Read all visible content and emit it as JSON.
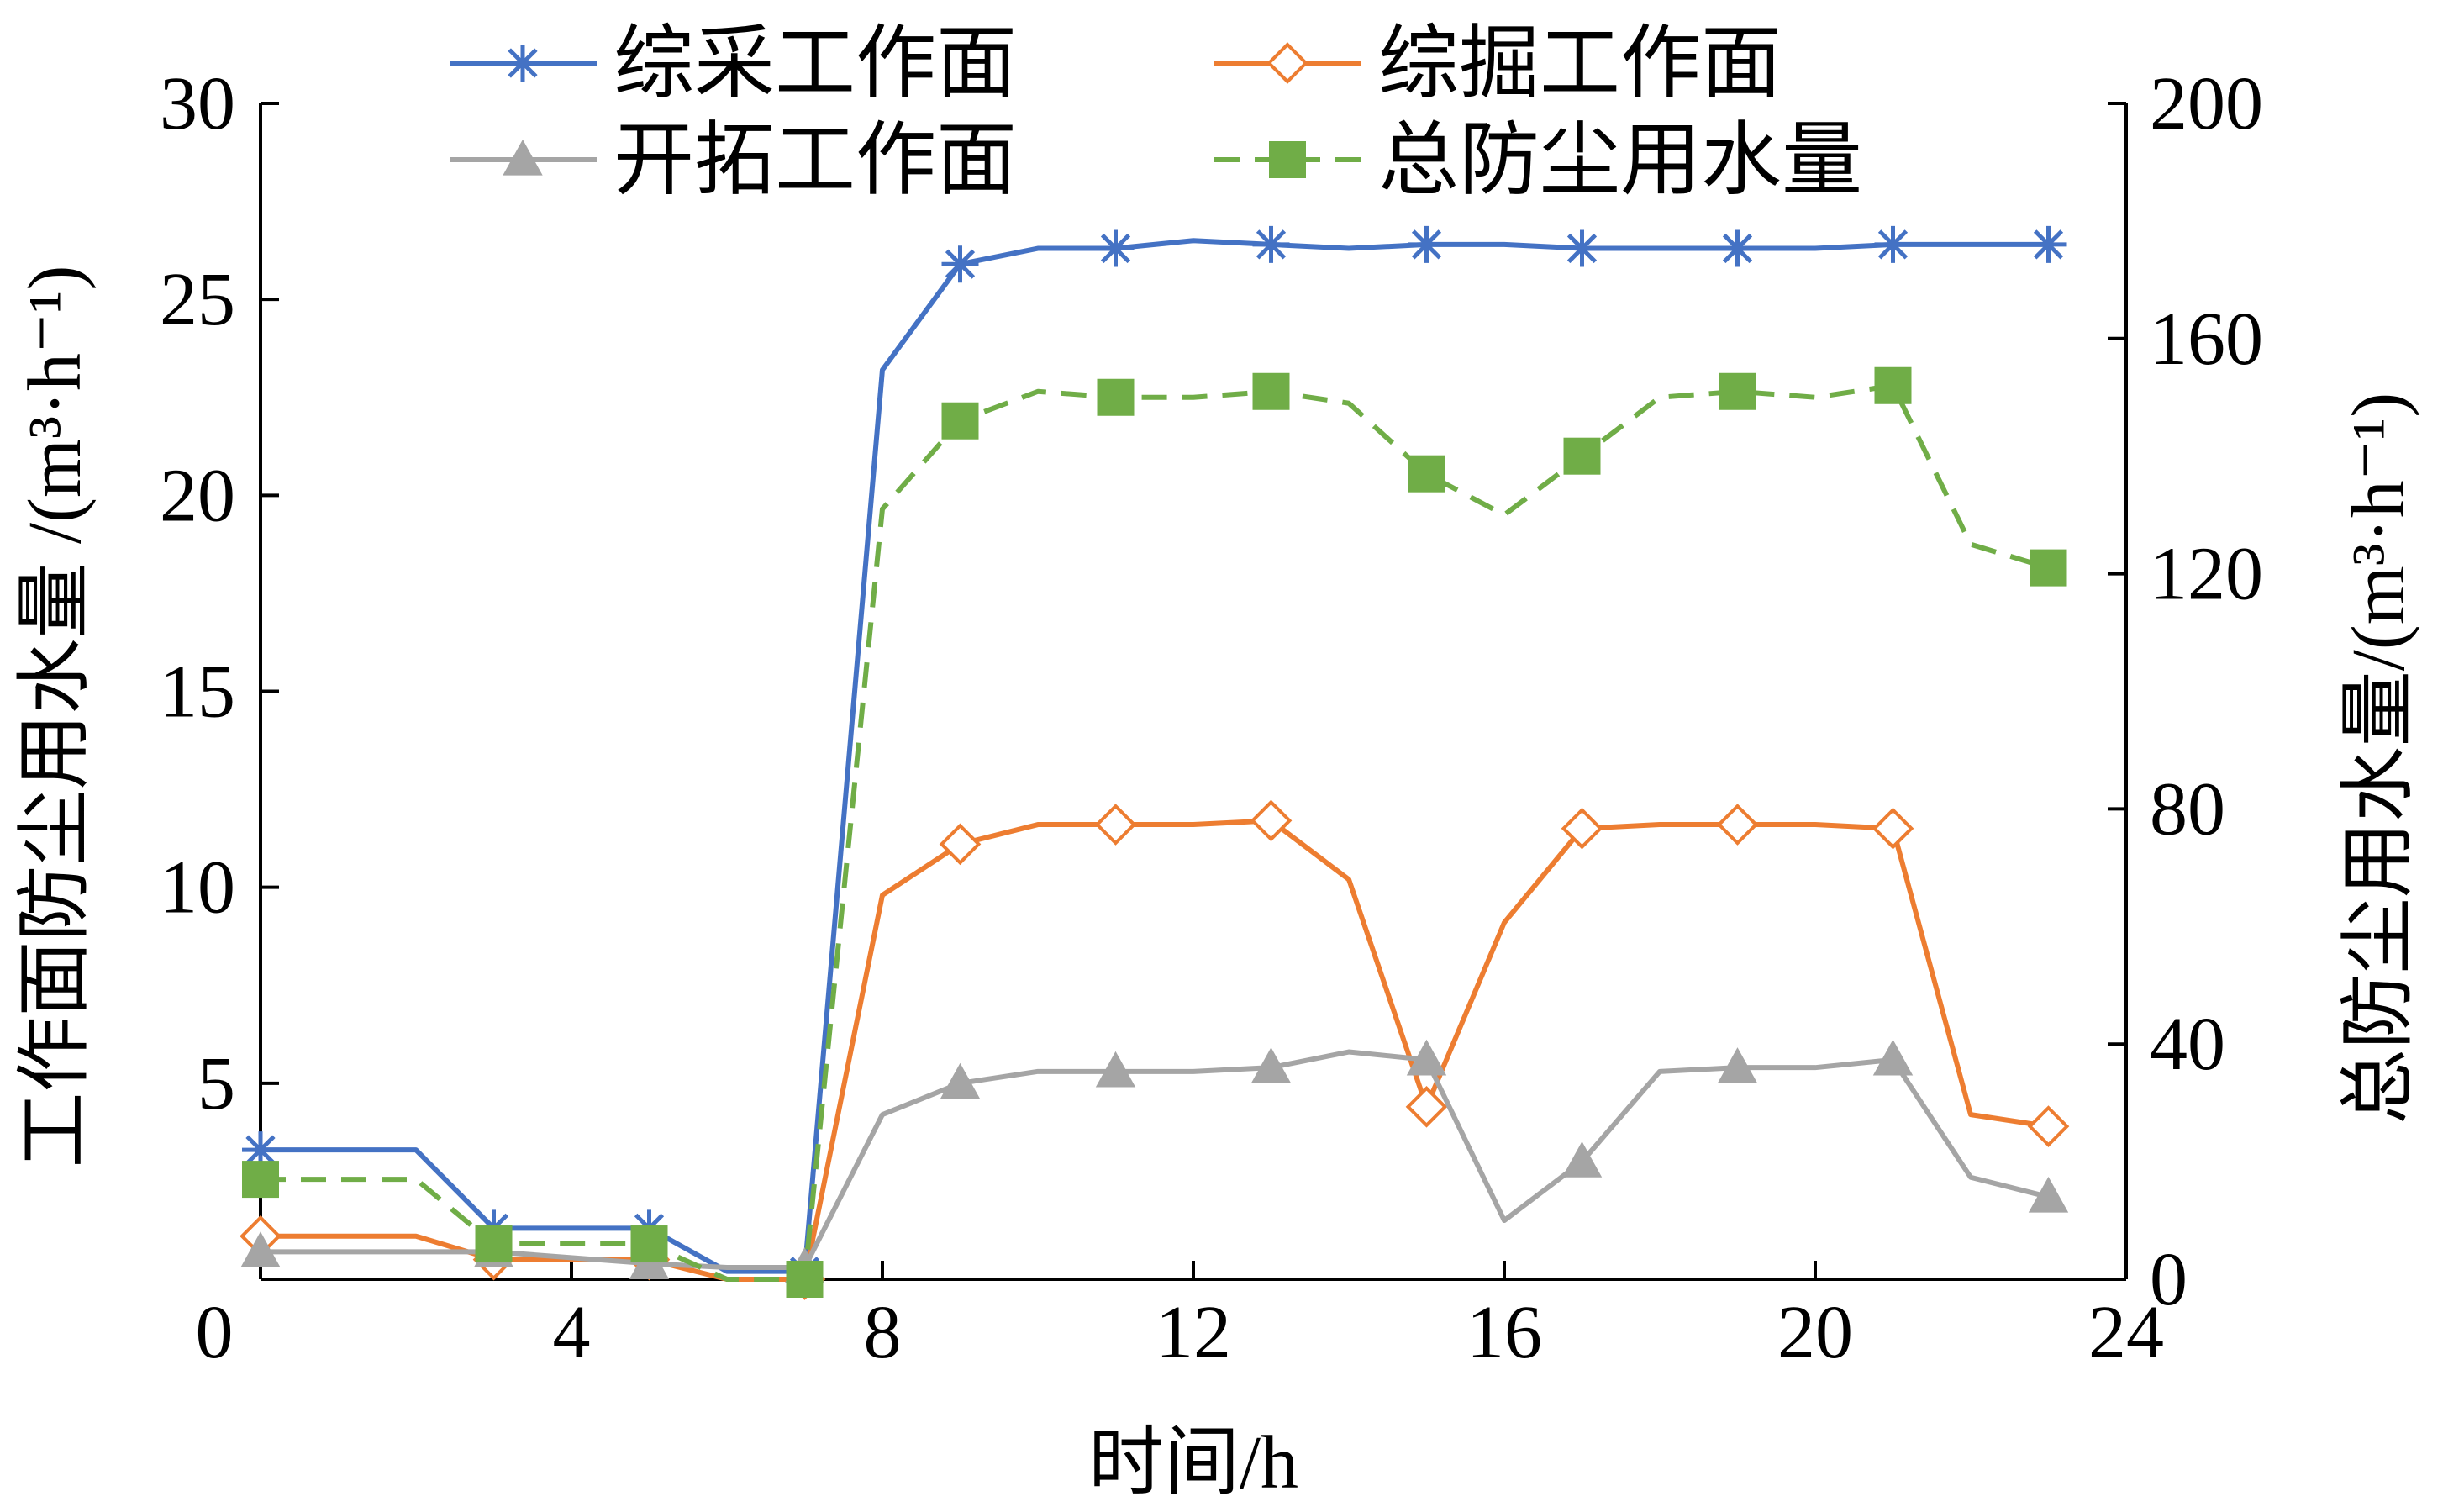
{
  "chart_data": {
    "type": "line",
    "xlabel": "时间/h",
    "ylabel_left": "工作面防尘用水量 /(m³·h⁻¹)",
    "ylabel_right": "总防尘用水量/(m³·h⁻¹)",
    "xlim": [
      0,
      24
    ],
    "ylim_left": [
      0,
      30
    ],
    "ylim_right": [
      0,
      200
    ],
    "xticks": [
      "0",
      "4",
      "8",
      "12",
      "16",
      "20",
      "24"
    ],
    "yticks_left": [
      "5",
      "10",
      "15",
      "20",
      "25",
      "30"
    ],
    "yticks_right": [
      "0",
      "40",
      "80",
      "120",
      "160",
      "200"
    ],
    "grid": false,
    "legend_position": "top",
    "series": [
      {
        "name": "综采工作面",
        "axis": "left",
        "color": "#4472C4",
        "line_style": "solid",
        "marker": "asterisk",
        "x": [
          0,
          2,
          3,
          5,
          6,
          7,
          8,
          9,
          10,
          11,
          12,
          13,
          14,
          15,
          16,
          17,
          18,
          19,
          20,
          21,
          22,
          23
        ],
        "y": [
          3.3,
          3.3,
          1.3,
          1.3,
          0.2,
          0.2,
          23.2,
          25.9,
          26.3,
          26.3,
          26.5,
          26.4,
          26.3,
          26.4,
          26.4,
          26.3,
          26.3,
          26.3,
          26.3,
          26.4,
          26.4,
          26.4
        ],
        "marker_x": [
          0,
          3,
          5,
          7,
          9,
          11,
          13,
          15,
          17,
          19,
          21,
          23
        ]
      },
      {
        "name": "综掘工作面",
        "axis": "left",
        "color": "#ED7D31",
        "line_style": "solid",
        "marker": "diamond-open",
        "x": [
          0,
          2,
          3,
          5,
          6,
          7,
          8,
          9,
          10,
          11,
          12,
          13,
          14,
          15,
          16,
          17,
          18,
          19,
          20,
          21,
          22,
          23
        ],
        "y": [
          1.1,
          1.1,
          0.5,
          0.5,
          0.0,
          0.0,
          9.8,
          11.1,
          11.6,
          11.6,
          11.6,
          11.7,
          10.2,
          4.4,
          9.1,
          11.5,
          11.6,
          11.6,
          11.6,
          11.5,
          4.2,
          3.9
        ],
        "marker_x": [
          0,
          3,
          5,
          7,
          9,
          11,
          13,
          15,
          17,
          19,
          21,
          23
        ]
      },
      {
        "name": "开拓工作面",
        "axis": "left",
        "color": "#A5A5A5",
        "line_style": "solid",
        "marker": "triangle",
        "x": [
          0,
          2,
          3,
          5,
          6,
          7,
          8,
          9,
          10,
          11,
          12,
          13,
          14,
          15,
          16,
          17,
          18,
          19,
          20,
          21,
          22,
          23
        ],
        "y": [
          0.7,
          0.7,
          0.7,
          0.4,
          0.3,
          0.3,
          4.2,
          5.0,
          5.3,
          5.3,
          5.3,
          5.4,
          5.8,
          5.6,
          1.5,
          3.0,
          5.3,
          5.4,
          5.4,
          5.6,
          2.6,
          2.1
        ],
        "marker_x": [
          0,
          3,
          5,
          7,
          9,
          11,
          13,
          15,
          17,
          19,
          21,
          23
        ]
      },
      {
        "name": "总防尘用水量",
        "axis": "right",
        "color": "#70AD47",
        "line_style": "dashed",
        "marker": "square",
        "x": [
          0,
          2,
          3,
          5,
          6,
          7,
          8,
          9,
          10,
          11,
          12,
          13,
          14,
          15,
          16,
          17,
          18,
          19,
          20,
          21,
          22,
          23
        ],
        "y": [
          17,
          17,
          6,
          6,
          0,
          0,
          131,
          146,
          151,
          150,
          150,
          151,
          149,
          137,
          130,
          140,
          150,
          151,
          150,
          152,
          125,
          121
        ],
        "marker_x": [
          0,
          3,
          5,
          7,
          9,
          11,
          13,
          15,
          17,
          19,
          21,
          23
        ]
      }
    ]
  }
}
